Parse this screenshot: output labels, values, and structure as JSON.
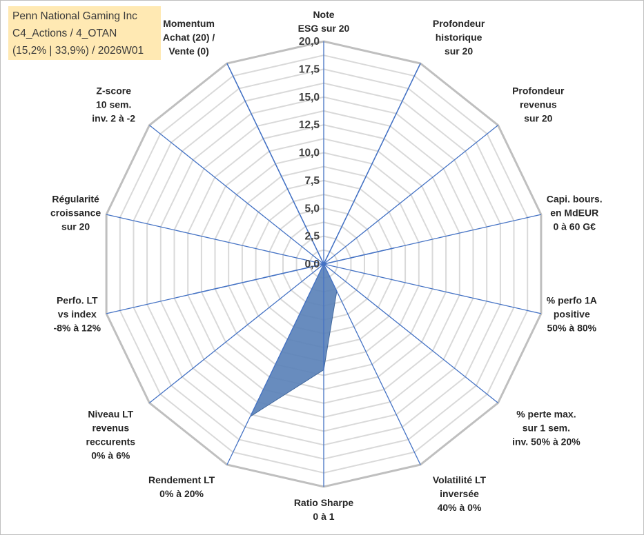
{
  "header": {
    "lines": [
      "Penn National Gaming Inc",
      "C4_Actions / 4_OTAN",
      "(15,2% | 33,9%) / 2026W01"
    ]
  },
  "chart_data": {
    "type": "radar",
    "rmin": 0,
    "rmax": 20,
    "tick_step": 2.5,
    "tick_labels": [
      "0,0",
      "2,5",
      "5,0",
      "7,5",
      "10,0",
      "12,5",
      "15,0",
      "17,5",
      "20,0"
    ],
    "grid": true,
    "colors": {
      "series_fill": "#5b82b8",
      "series_stroke": "#41679c",
      "ring_outer": "#bfbfbf",
      "ring_inner": "#d9d9d9",
      "spoke": "#4472c4"
    },
    "axes": [
      [
        "Note",
        "ESG sur 20"
      ],
      [
        "Profondeur",
        "historique",
        "sur 20"
      ],
      [
        "Profondeur",
        "revenus",
        "sur 20"
      ],
      [
        "Capi. bours.",
        "en MdEUR",
        "0 à 60 G€"
      ],
      [
        "% perfo 1A",
        "positive",
        "50% à 80%"
      ],
      [
        "% perte max.",
        "sur 1 sem.",
        "inv. 50% à 20%"
      ],
      [
        "Volatilité LT",
        "inversée",
        "40% à 0%"
      ],
      [
        "Ratio Sharpe",
        "0 à 1"
      ],
      [
        "Rendement LT",
        "0% à 20%"
      ],
      [
        "Niveau LT",
        "revenus",
        "reccurents",
        "0% à 6%"
      ],
      [
        "Perfo. LT",
        "vs index",
        "-8% à 12%"
      ],
      [
        "Régularité",
        "croissance",
        "sur 20"
      ],
      [
        "Z-score",
        "10 sem.",
        "inv. 2 à -2"
      ],
      [
        "Momentum",
        "Achat (20) /",
        "Vente (0)"
      ]
    ],
    "series": [
      {
        "values": [
          0,
          20,
          0,
          0,
          0,
          0,
          0,
          0,
          0,
          0,
          0,
          0,
          0,
          0
        ]
      },
      {
        "values": [
          0,
          0,
          0,
          6.5,
          0,
          0,
          0,
          0,
          0,
          0,
          0,
          0,
          0,
          0
        ]
      },
      {
        "values": [
          0,
          0,
          0,
          0,
          0,
          0,
          0,
          0,
          0,
          0,
          12,
          0,
          0,
          0
        ]
      },
      {
        "values": [
          0,
          0,
          0,
          0,
          0,
          0,
          2.7,
          9.5,
          15.2,
          0,
          0,
          0,
          0,
          0
        ],
        "filled": true
      },
      {
        "values": [
          0,
          0,
          0,
          0,
          0,
          0,
          0,
          0,
          0,
          0,
          0,
          0,
          0,
          20
        ]
      }
    ]
  }
}
